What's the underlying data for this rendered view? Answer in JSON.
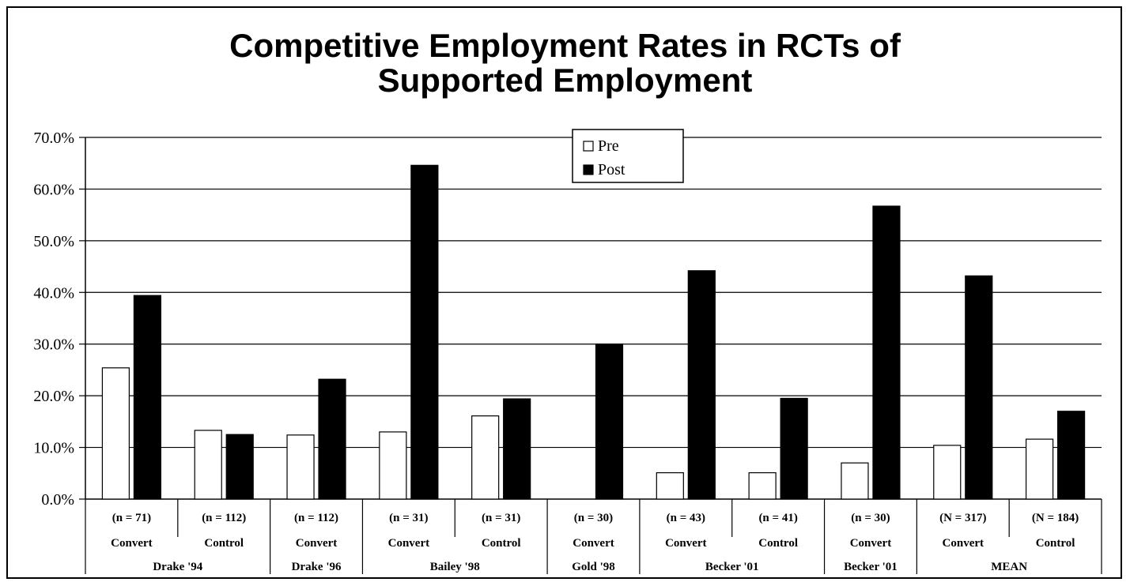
{
  "chart_data": {
    "type": "bar",
    "title_lines": [
      "Competitive Employment Rates in RCTs of",
      "Supported Employment"
    ],
    "xlabel": "",
    "ylabel": "",
    "ylim": [
      0,
      70
    ],
    "y_ticks": [
      "0.0%",
      "10.0%",
      "20.0%",
      "30.0%",
      "40.0%",
      "50.0%",
      "60.0%",
      "70.0%"
    ],
    "grid": true,
    "legend_position": "top-center",
    "series": [
      {
        "name": "Pre",
        "color": "#ffffff",
        "values": [
          25.4,
          13.3,
          12.4,
          13.0,
          16.1,
          0.0,
          5.1,
          5.1,
          7.0,
          10.4,
          11.6
        ]
      },
      {
        "name": "Post",
        "color": "#000000",
        "values": [
          39.4,
          12.5,
          23.2,
          64.6,
          19.4,
          30.0,
          44.2,
          19.5,
          56.7,
          43.2,
          17.0
        ]
      }
    ],
    "categories": [
      {
        "n": "(n = 71)",
        "group": "Convert"
      },
      {
        "n": "(n = 112)",
        "group": "Control"
      },
      {
        "n": "(n = 112)",
        "group": "Convert"
      },
      {
        "n": "(n = 31)",
        "group": "Convert"
      },
      {
        "n": "(n = 31)",
        "group": "Control"
      },
      {
        "n": "(n = 30)",
        "group": "Convert"
      },
      {
        "n": "(n = 43)",
        "group": "Convert"
      },
      {
        "n": "(n = 41)",
        "group": "Control"
      },
      {
        "n": "(n = 30)",
        "group": "Convert"
      },
      {
        "n": "(N = 317)",
        "group": "Convert"
      },
      {
        "n": "(N = 184)",
        "group": "Control"
      }
    ],
    "studies": [
      {
        "label": "Drake '94",
        "span": 2
      },
      {
        "label": "Drake '96",
        "span": 1
      },
      {
        "label": "Bailey '98",
        "span": 2
      },
      {
        "label": "Gold '98",
        "span": 1
      },
      {
        "label": "Becker '01",
        "span": 2
      },
      {
        "label": "Becker '01",
        "span": 1
      },
      {
        "label": "MEAN",
        "span": 2
      }
    ]
  }
}
